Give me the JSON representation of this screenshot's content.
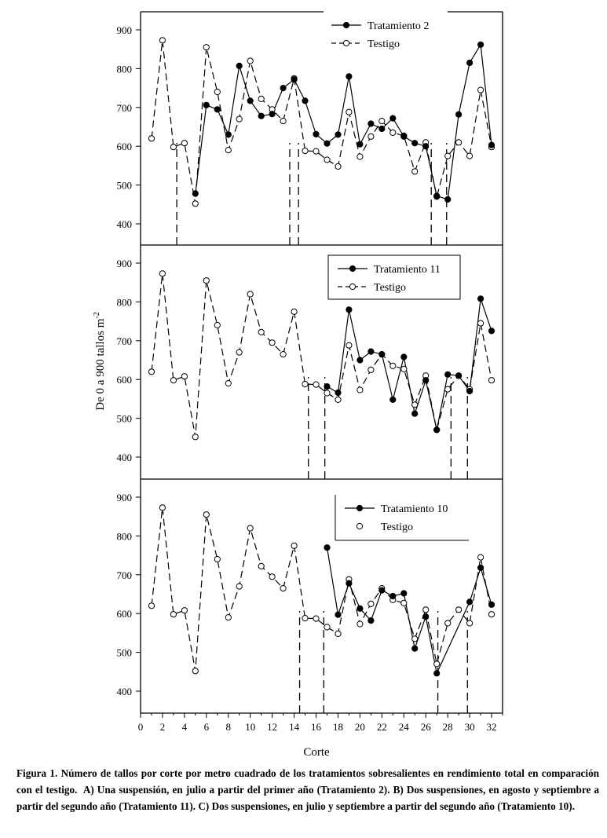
{
  "chart_data": {
    "type": "line",
    "ylabel": "De 0 a 900 tallos m",
    "ylabel_sup": "-2",
    "xlabel": "Corte",
    "xlim": [
      0,
      33
    ],
    "x_ticks": [
      0,
      2,
      4,
      6,
      8,
      10,
      12,
      14,
      16,
      18,
      20,
      22,
      24,
      26,
      28,
      30,
      32
    ],
    "ylim": [
      350,
      950
    ],
    "y_ticks": [
      400,
      500,
      600,
      700,
      800,
      900
    ],
    "panels": [
      {
        "legend": [
          "Tratamiento 2",
          "Testigo"
        ],
        "series": [
          {
            "name": "Tratamiento 2",
            "marker": "filled",
            "points": [
              [
                5,
                478
              ],
              [
                6,
                706
              ],
              [
                7,
                695
              ],
              [
                8,
                630
              ],
              [
                9,
                807
              ],
              [
                10,
                717
              ],
              [
                11,
                678
              ],
              [
                12,
                683
              ],
              [
                13,
                750
              ],
              [
                14,
                772
              ],
              [
                15,
                717
              ],
              [
                16,
                631
              ],
              [
                17,
                607
              ],
              [
                18,
                630
              ],
              [
                19,
                780
              ],
              [
                20,
                605
              ],
              [
                21,
                658
              ],
              [
                22,
                645
              ],
              [
                23,
                672
              ],
              [
                24,
                625
              ],
              [
                25,
                608
              ],
              [
                26,
                600
              ],
              [
                27,
                472
              ],
              [
                28,
                463
              ],
              [
                29,
                682
              ],
              [
                30,
                815
              ],
              [
                31,
                862
              ],
              [
                32,
                603
              ]
            ],
            "drops": [
              3.3,
              13.6,
              14.4,
              26.5,
              27.9
            ]
          },
          {
            "name": "Testigo",
            "marker": "open",
            "points": [
              [
                1,
                620
              ],
              [
                2,
                873
              ],
              [
                3,
                598
              ],
              [
                4,
                608
              ],
              [
                5,
                452
              ],
              [
                6,
                855
              ],
              [
                7,
                740
              ],
              [
                8,
                590
              ],
              [
                9,
                670
              ],
              [
                10,
                820
              ],
              [
                11,
                722
              ],
              [
                12,
                695
              ],
              [
                13,
                665
              ],
              [
                14,
                775
              ],
              [
                15,
                588
              ],
              [
                16,
                587
              ],
              [
                17,
                565
              ],
              [
                18,
                548
              ],
              [
                19,
                688
              ],
              [
                20,
                573
              ],
              [
                21,
                625
              ],
              [
                22,
                665
              ],
              [
                23,
                635
              ],
              [
                24,
                627
              ],
              [
                25,
                535
              ],
              [
                26,
                610
              ],
              [
                27,
                470
              ],
              [
                28,
                575
              ],
              [
                29,
                610
              ],
              [
                30,
                575
              ],
              [
                31,
                745
              ],
              [
                32,
                598
              ]
            ]
          }
        ]
      },
      {
        "legend": [
          "Tratamiento 11",
          "Testigo"
        ],
        "series": [
          {
            "name": "Tratamiento 11",
            "marker": "filled",
            "points": [
              [
                17,
                582
              ],
              [
                18,
                566
              ],
              [
                19,
                780
              ],
              [
                20,
                650
              ],
              [
                21,
                672
              ],
              [
                22,
                665
              ],
              [
                23,
                548
              ],
              [
                24,
                658
              ],
              [
                25,
                512
              ],
              [
                26,
                598
              ],
              [
                27,
                470
              ],
              [
                28,
                613
              ],
              [
                29,
                610
              ],
              [
                30,
                570
              ],
              [
                31,
                808
              ],
              [
                32,
                725
              ]
            ],
            "drops": [
              15.3,
              16.8,
              28.3,
              29.8
            ]
          },
          {
            "name": "Testigo",
            "marker": "open",
            "points": [
              [
                1,
                620
              ],
              [
                2,
                873
              ],
              [
                3,
                598
              ],
              [
                4,
                608
              ],
              [
                5,
                452
              ],
              [
                6,
                855
              ],
              [
                7,
                740
              ],
              [
                8,
                590
              ],
              [
                9,
                670
              ],
              [
                10,
                820
              ],
              [
                11,
                722
              ],
              [
                12,
                695
              ],
              [
                13,
                665
              ],
              [
                14,
                775
              ],
              [
                15,
                588
              ],
              [
                16,
                587
              ],
              [
                17,
                565
              ],
              [
                18,
                548
              ],
              [
                19,
                688
              ],
              [
                20,
                573
              ],
              [
                21,
                625
              ],
              [
                22,
                665
              ],
              [
                23,
                635
              ],
              [
                24,
                627
              ],
              [
                25,
                535
              ],
              [
                26,
                610
              ],
              [
                27,
                470
              ],
              [
                28,
                575
              ],
              [
                29,
                610
              ],
              [
                30,
                575
              ],
              [
                31,
                745
              ],
              [
                32,
                598
              ]
            ]
          }
        ]
      },
      {
        "legend": [
          "Tratamiento 10",
          "Testigo"
        ],
        "series": [
          {
            "name": "Tratamiento 10",
            "marker": "filled",
            "points": [
              [
                17,
                770
              ],
              [
                18,
                597
              ],
              [
                19,
                678
              ],
              [
                20,
                613
              ],
              [
                21,
                582
              ],
              [
                22,
                660
              ],
              [
                23,
                645
              ],
              [
                24,
                652
              ],
              [
                25,
                510
              ],
              [
                26,
                592
              ],
              [
                27,
                446
              ],
              [
                30,
                630
              ],
              [
                31,
                718
              ],
              [
                32,
                623
              ]
            ],
            "drops": [
              14.5,
              16.7,
              27.1,
              29.8
            ]
          },
          {
            "name": "Testigo",
            "marker": "open",
            "points": [
              [
                1,
                620
              ],
              [
                2,
                873
              ],
              [
                3,
                598
              ],
              [
                4,
                608
              ],
              [
                5,
                452
              ],
              [
                6,
                855
              ],
              [
                7,
                740
              ],
              [
                8,
                590
              ],
              [
                9,
                670
              ],
              [
                10,
                820
              ],
              [
                11,
                722
              ],
              [
                12,
                695
              ],
              [
                13,
                665
              ],
              [
                14,
                775
              ],
              [
                15,
                588
              ],
              [
                16,
                587
              ],
              [
                17,
                565
              ],
              [
                18,
                548
              ],
              [
                19,
                688
              ],
              [
                20,
                573
              ],
              [
                21,
                625
              ],
              [
                22,
                665
              ],
              [
                23,
                635
              ],
              [
                24,
                627
              ],
              [
                25,
                535
              ],
              [
                26,
                610
              ],
              [
                27,
                470
              ],
              [
                28,
                575
              ],
              [
                29,
                610
              ],
              [
                30,
                575
              ],
              [
                31,
                745
              ],
              [
                32,
                598
              ]
            ]
          }
        ]
      }
    ]
  },
  "caption": {
    "lead": "Figura 1. Número de tallos por corte por metro cuadrado de los tratamientos sobresalientes en rendimiento total en comparación con el testigo.",
    "a": "A) Una suspensión, en julio a partir del primer año (Tratamiento 2).",
    "b": "B) Dos suspensiones, en agosto y septiembre a partir del segundo año (Tratamiento 11).",
    "c": "C) Dos suspensiones, en julio y septiembre a partir del segundo año (Tratamiento 10)."
  }
}
